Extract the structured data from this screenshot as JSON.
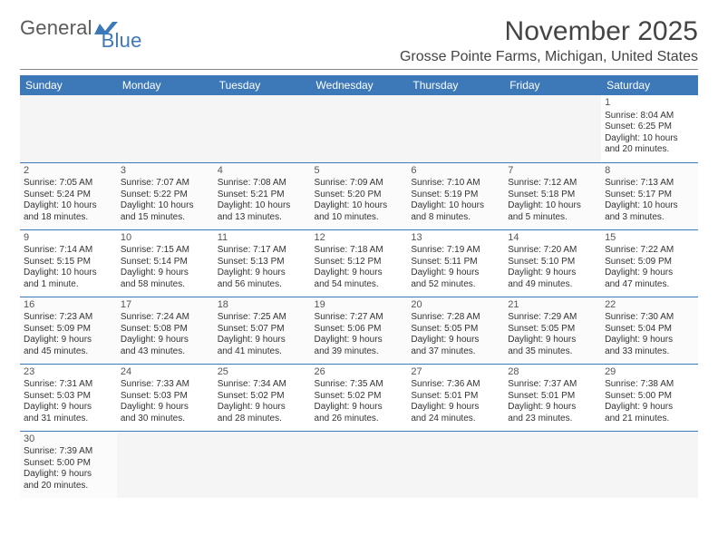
{
  "brand": {
    "part1": "General",
    "part2": "Blue"
  },
  "title": "November 2025",
  "location": "Grosse Pointe Farms, Michigan, United States",
  "colors": {
    "header_bg": "#3d79b8",
    "header_fg": "#ffffff",
    "rule": "#888888",
    "text": "#333333",
    "logo_gray": "#5a5a5a",
    "logo_blue": "#3d79b8",
    "cell_border": "#3d79b8"
  },
  "fonts": {
    "title_size": 30,
    "location_size": 16,
    "dayhead_size": 12,
    "cell_size": 10
  },
  "day_headers": [
    "Sunday",
    "Monday",
    "Tuesday",
    "Wednesday",
    "Thursday",
    "Friday",
    "Saturday"
  ],
  "weeks": [
    [
      null,
      null,
      null,
      null,
      null,
      null,
      {
        "n": "1",
        "sr": "Sunrise: 8:04 AM",
        "ss": "Sunset: 6:25 PM",
        "d1": "Daylight: 10 hours",
        "d2": "and 20 minutes."
      }
    ],
    [
      {
        "n": "2",
        "sr": "Sunrise: 7:05 AM",
        "ss": "Sunset: 5:24 PM",
        "d1": "Daylight: 10 hours",
        "d2": "and 18 minutes."
      },
      {
        "n": "3",
        "sr": "Sunrise: 7:07 AM",
        "ss": "Sunset: 5:22 PM",
        "d1": "Daylight: 10 hours",
        "d2": "and 15 minutes."
      },
      {
        "n": "4",
        "sr": "Sunrise: 7:08 AM",
        "ss": "Sunset: 5:21 PM",
        "d1": "Daylight: 10 hours",
        "d2": "and 13 minutes."
      },
      {
        "n": "5",
        "sr": "Sunrise: 7:09 AM",
        "ss": "Sunset: 5:20 PM",
        "d1": "Daylight: 10 hours",
        "d2": "and 10 minutes."
      },
      {
        "n": "6",
        "sr": "Sunrise: 7:10 AM",
        "ss": "Sunset: 5:19 PM",
        "d1": "Daylight: 10 hours",
        "d2": "and 8 minutes."
      },
      {
        "n": "7",
        "sr": "Sunrise: 7:12 AM",
        "ss": "Sunset: 5:18 PM",
        "d1": "Daylight: 10 hours",
        "d2": "and 5 minutes."
      },
      {
        "n": "8",
        "sr": "Sunrise: 7:13 AM",
        "ss": "Sunset: 5:17 PM",
        "d1": "Daylight: 10 hours",
        "d2": "and 3 minutes."
      }
    ],
    [
      {
        "n": "9",
        "sr": "Sunrise: 7:14 AM",
        "ss": "Sunset: 5:15 PM",
        "d1": "Daylight: 10 hours",
        "d2": "and 1 minute."
      },
      {
        "n": "10",
        "sr": "Sunrise: 7:15 AM",
        "ss": "Sunset: 5:14 PM",
        "d1": "Daylight: 9 hours",
        "d2": "and 58 minutes."
      },
      {
        "n": "11",
        "sr": "Sunrise: 7:17 AM",
        "ss": "Sunset: 5:13 PM",
        "d1": "Daylight: 9 hours",
        "d2": "and 56 minutes."
      },
      {
        "n": "12",
        "sr": "Sunrise: 7:18 AM",
        "ss": "Sunset: 5:12 PM",
        "d1": "Daylight: 9 hours",
        "d2": "and 54 minutes."
      },
      {
        "n": "13",
        "sr": "Sunrise: 7:19 AM",
        "ss": "Sunset: 5:11 PM",
        "d1": "Daylight: 9 hours",
        "d2": "and 52 minutes."
      },
      {
        "n": "14",
        "sr": "Sunrise: 7:20 AM",
        "ss": "Sunset: 5:10 PM",
        "d1": "Daylight: 9 hours",
        "d2": "and 49 minutes."
      },
      {
        "n": "15",
        "sr": "Sunrise: 7:22 AM",
        "ss": "Sunset: 5:09 PM",
        "d1": "Daylight: 9 hours",
        "d2": "and 47 minutes."
      }
    ],
    [
      {
        "n": "16",
        "sr": "Sunrise: 7:23 AM",
        "ss": "Sunset: 5:09 PM",
        "d1": "Daylight: 9 hours",
        "d2": "and 45 minutes."
      },
      {
        "n": "17",
        "sr": "Sunrise: 7:24 AM",
        "ss": "Sunset: 5:08 PM",
        "d1": "Daylight: 9 hours",
        "d2": "and 43 minutes."
      },
      {
        "n": "18",
        "sr": "Sunrise: 7:25 AM",
        "ss": "Sunset: 5:07 PM",
        "d1": "Daylight: 9 hours",
        "d2": "and 41 minutes."
      },
      {
        "n": "19",
        "sr": "Sunrise: 7:27 AM",
        "ss": "Sunset: 5:06 PM",
        "d1": "Daylight: 9 hours",
        "d2": "and 39 minutes."
      },
      {
        "n": "20",
        "sr": "Sunrise: 7:28 AM",
        "ss": "Sunset: 5:05 PM",
        "d1": "Daylight: 9 hours",
        "d2": "and 37 minutes."
      },
      {
        "n": "21",
        "sr": "Sunrise: 7:29 AM",
        "ss": "Sunset: 5:05 PM",
        "d1": "Daylight: 9 hours",
        "d2": "and 35 minutes."
      },
      {
        "n": "22",
        "sr": "Sunrise: 7:30 AM",
        "ss": "Sunset: 5:04 PM",
        "d1": "Daylight: 9 hours",
        "d2": "and 33 minutes."
      }
    ],
    [
      {
        "n": "23",
        "sr": "Sunrise: 7:31 AM",
        "ss": "Sunset: 5:03 PM",
        "d1": "Daylight: 9 hours",
        "d2": "and 31 minutes."
      },
      {
        "n": "24",
        "sr": "Sunrise: 7:33 AM",
        "ss": "Sunset: 5:03 PM",
        "d1": "Daylight: 9 hours",
        "d2": "and 30 minutes."
      },
      {
        "n": "25",
        "sr": "Sunrise: 7:34 AM",
        "ss": "Sunset: 5:02 PM",
        "d1": "Daylight: 9 hours",
        "d2": "and 28 minutes."
      },
      {
        "n": "26",
        "sr": "Sunrise: 7:35 AM",
        "ss": "Sunset: 5:02 PM",
        "d1": "Daylight: 9 hours",
        "d2": "and 26 minutes."
      },
      {
        "n": "27",
        "sr": "Sunrise: 7:36 AM",
        "ss": "Sunset: 5:01 PM",
        "d1": "Daylight: 9 hours",
        "d2": "and 24 minutes."
      },
      {
        "n": "28",
        "sr": "Sunrise: 7:37 AM",
        "ss": "Sunset: 5:01 PM",
        "d1": "Daylight: 9 hours",
        "d2": "and 23 minutes."
      },
      {
        "n": "29",
        "sr": "Sunrise: 7:38 AM",
        "ss": "Sunset: 5:00 PM",
        "d1": "Daylight: 9 hours",
        "d2": "and 21 minutes."
      }
    ],
    [
      {
        "n": "30",
        "sr": "Sunrise: 7:39 AM",
        "ss": "Sunset: 5:00 PM",
        "d1": "Daylight: 9 hours",
        "d2": "and 20 minutes."
      },
      null,
      null,
      null,
      null,
      null,
      null
    ]
  ]
}
